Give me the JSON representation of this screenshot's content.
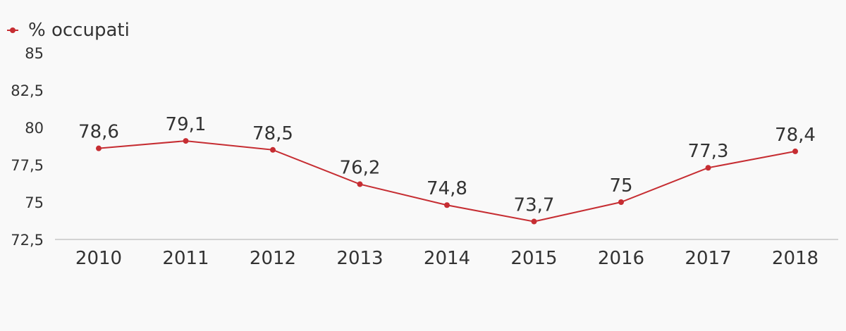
{
  "chart_data": {
    "type": "line",
    "categories": [
      "2010",
      "2011",
      "2012",
      "2013",
      "2014",
      "2015",
      "2016",
      "2017",
      "2018"
    ],
    "series": [
      {
        "name": "% occupati",
        "values": [
          78.6,
          79.1,
          78.5,
          76.2,
          74.8,
          73.7,
          75,
          77.3,
          78.4
        ],
        "labels": [
          "78,6",
          "79,1",
          "78,5",
          "76,2",
          "74,8",
          "73,7",
          "75",
          "77,3",
          "78,4"
        ],
        "color": "#c62d32"
      }
    ],
    "ylim": [
      72.5,
      85
    ],
    "yticks": [
      72.5,
      75,
      77.5,
      80,
      82.5,
      85
    ],
    "ytick_labels": [
      "72,5",
      "75",
      "77,5",
      "80",
      "82,5",
      "85"
    ],
    "legend_position": "top-left",
    "grid": false,
    "colors": {
      "background": "#f9f9f9",
      "axis": "#d3d3d3",
      "text": "#333333"
    }
  }
}
